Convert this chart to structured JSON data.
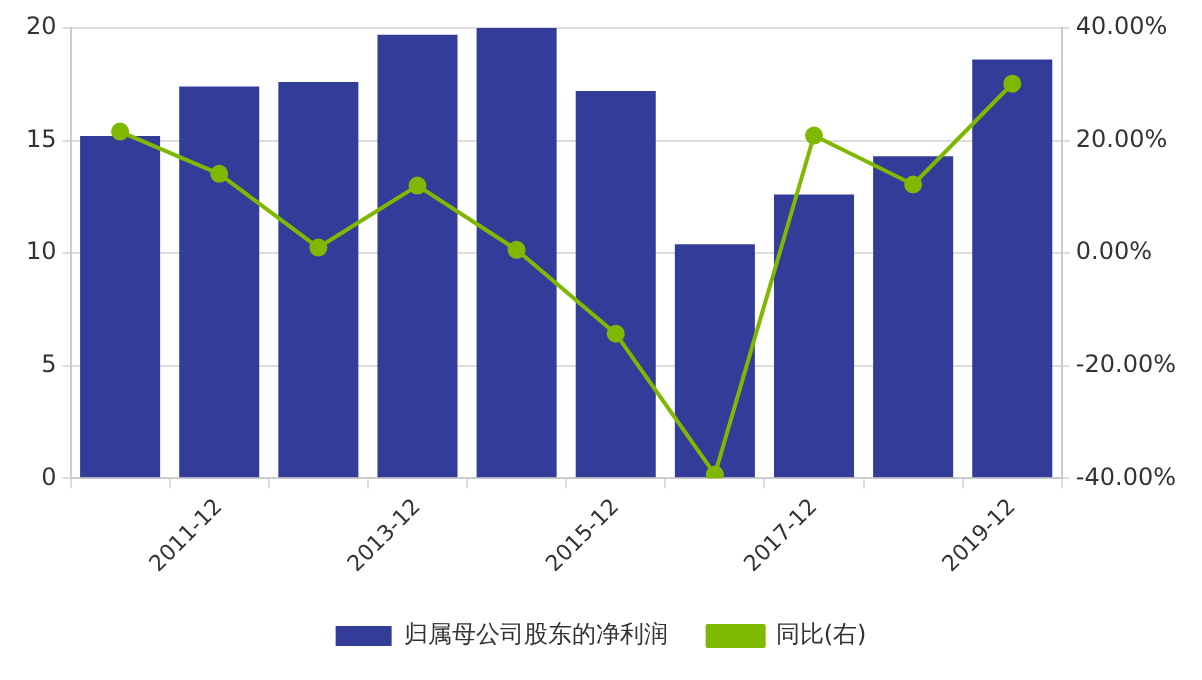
{
  "chart_data": {
    "type": "bar",
    "categories": [
      null,
      "2011-12",
      null,
      "2013-12",
      null,
      "2015-12",
      null,
      "2017-12",
      null,
      "2019-12"
    ],
    "series": [
      {
        "name": "归属母公司股东的净利润",
        "color": "#333d99",
        "values": [
          15.2,
          17.4,
          17.6,
          19.7,
          20.0,
          17.2,
          10.4,
          12.6,
          14.3,
          18.6
        ]
      },
      {
        "name": "同比(右)",
        "type": "line",
        "axis": "y2",
        "color": "#7fb800",
        "values": [
          21.6,
          14.1,
          1.0,
          12.0,
          0.6,
          -14.3,
          -39.3,
          20.9,
          12.2,
          30.1
        ]
      }
    ],
    "ylim": [
      0,
      20
    ],
    "yticks": [
      0,
      5,
      10,
      15,
      20
    ],
    "y2lim": [
      -40,
      40
    ],
    "y2ticks": [
      {
        "value": -40,
        "label": "-40.00%"
      },
      {
        "value": -20,
        "label": "-20.00%"
      },
      {
        "value": 0,
        "label": "0.00%"
      },
      {
        "value": 20,
        "label": "20.00%"
      },
      {
        "value": 40,
        "label": "40.00%"
      }
    ],
    "grid": "y",
    "legend": "bottom",
    "marker": "circle",
    "line_style": "solid"
  }
}
